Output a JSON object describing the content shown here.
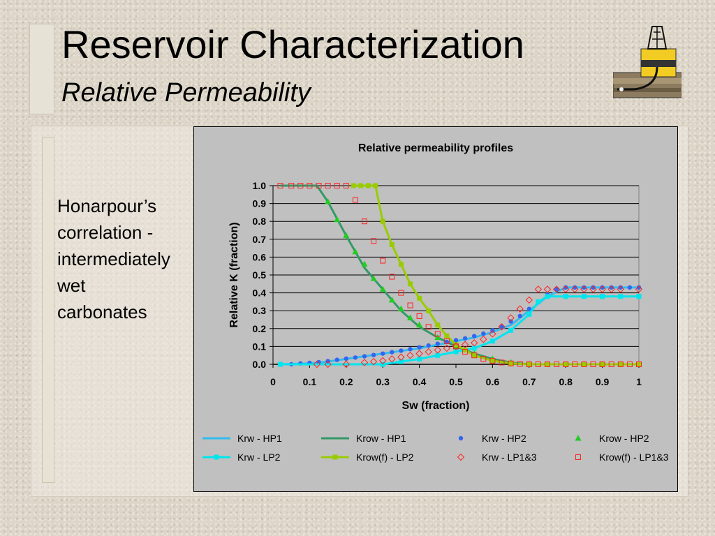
{
  "slide": {
    "title": "Reservoir Characterization",
    "subtitle": "Relative Permeability",
    "body_lines": [
      "Honarpour’s",
      "correlation -",
      "intermediately",
      "wet",
      "carbonates"
    ]
  },
  "colors": {
    "krw_hp1": "#33bbee",
    "krow_hp1": "#339966",
    "krw_hp2": "#3366ee",
    "krow_hp2": "#22cc22",
    "krw_lp2": "#00e5ee",
    "krowf_lp2": "#99cc00",
    "krw_lp13": "#ff2222",
    "krowf_lp13": "#ff2222",
    "plot_bg": "#c0c0c0"
  },
  "chart_data": {
    "type": "scatter",
    "title": "Relative permeability profiles",
    "xlabel": "Sw (fraction)",
    "ylabel": "Relative K (fraction)",
    "xlim": [
      0,
      1
    ],
    "ylim": [
      0,
      1
    ],
    "x_ticks": [
      "0",
      "0.1",
      "0.2",
      "0.3",
      "0.4",
      "0.5",
      "0.6",
      "0.7",
      "0.8",
      "0.9",
      "1"
    ],
    "y_ticks": [
      "0.0",
      "0.1",
      "0.2",
      "0.3",
      "0.4",
      "0.5",
      "0.6",
      "0.7",
      "0.8",
      "0.9",
      "1.0"
    ],
    "grid": "horizontal",
    "legend_position": "bottom",
    "series": [
      {
        "name": "Krw - HP1",
        "style": "line",
        "color": "#33bbee",
        "marker": "none",
        "x": [
          0.02,
          0.1,
          0.15,
          0.2,
          0.25,
          0.3,
          0.35,
          0.4,
          0.45,
          0.5,
          0.55,
          0.6,
          0.65,
          0.7,
          0.75,
          0.8,
          0.85,
          0.9,
          1.0
        ],
        "y": [
          0,
          0.005,
          0.015,
          0.03,
          0.045,
          0.06,
          0.075,
          0.09,
          0.11,
          0.13,
          0.15,
          0.18,
          0.22,
          0.3,
          0.38,
          0.43,
          0.43,
          0.43,
          0.43
        ]
      },
      {
        "name": "Krow - HP1",
        "style": "line",
        "color": "#339966",
        "marker": "none",
        "x": [
          0.02,
          0.12,
          0.15,
          0.2,
          0.25,
          0.3,
          0.35,
          0.4,
          0.45,
          0.5,
          0.55,
          0.6,
          0.65,
          0.7,
          0.75,
          0.8,
          1.0
        ],
        "y": [
          1.0,
          1.0,
          0.91,
          0.72,
          0.54,
          0.42,
          0.3,
          0.21,
          0.15,
          0.1,
          0.06,
          0.03,
          0.01,
          0.0,
          0.0,
          0.0,
          0.0
        ]
      },
      {
        "name": "Krw - HP2",
        "style": "marker",
        "color": "#3366ee",
        "marker": "circle",
        "x": [
          0.02,
          0.05,
          0.075,
          0.1,
          0.125,
          0.15,
          0.175,
          0.2,
          0.225,
          0.25,
          0.275,
          0.3,
          0.325,
          0.35,
          0.375,
          0.4,
          0.425,
          0.45,
          0.475,
          0.5,
          0.525,
          0.55,
          0.575,
          0.6,
          0.625,
          0.65,
          0.675,
          0.7,
          0.725,
          0.75,
          0.775,
          0.8,
          0.825,
          0.85,
          0.875,
          0.9,
          0.925,
          0.95,
          0.975,
          1.0
        ],
        "y": [
          0,
          0,
          0.005,
          0.008,
          0.012,
          0.018,
          0.025,
          0.032,
          0.038,
          0.045,
          0.052,
          0.06,
          0.068,
          0.076,
          0.085,
          0.095,
          0.105,
          0.115,
          0.125,
          0.135,
          0.145,
          0.158,
          0.172,
          0.19,
          0.21,
          0.24,
          0.27,
          0.31,
          0.35,
          0.39,
          0.42,
          0.43,
          0.43,
          0.43,
          0.43,
          0.43,
          0.43,
          0.43,
          0.43,
          0.43
        ]
      },
      {
        "name": "Krow - HP2",
        "style": "marker",
        "color": "#22cc22",
        "marker": "triangle",
        "x": [
          0.15,
          0.175,
          0.2,
          0.225,
          0.25,
          0.275,
          0.3,
          0.325,
          0.35,
          0.375,
          0.4,
          0.45,
          0.5,
          0.55,
          0.6,
          0.65,
          0.7
        ],
        "y": [
          0.91,
          0.81,
          0.72,
          0.63,
          0.56,
          0.48,
          0.42,
          0.36,
          0.31,
          0.26,
          0.22,
          0.15,
          0.1,
          0.06,
          0.03,
          0.01,
          0.0
        ]
      },
      {
        "name": "Krw - LP2",
        "style": "line+marker",
        "color": "#00e5ee",
        "marker": "square",
        "x": [
          0.02,
          0.3,
          0.35,
          0.4,
          0.45,
          0.5,
          0.55,
          0.6,
          0.65,
          0.7,
          0.725,
          0.75,
          0.8,
          0.85,
          0.9,
          0.95,
          1.0
        ],
        "y": [
          0,
          0.0,
          0.015,
          0.03,
          0.05,
          0.07,
          0.09,
          0.13,
          0.19,
          0.28,
          0.35,
          0.38,
          0.38,
          0.38,
          0.38,
          0.38,
          0.38
        ]
      },
      {
        "name": "Krow(f) - LP2",
        "style": "line+marker",
        "color": "#99cc00",
        "marker": "square",
        "x": [
          0.22,
          0.24,
          0.26,
          0.28,
          0.3,
          0.325,
          0.35,
          0.375,
          0.4,
          0.425,
          0.45,
          0.475,
          0.5,
          0.525,
          0.55,
          0.6,
          0.65,
          0.7,
          0.75,
          0.8,
          0.85,
          0.9,
          0.95,
          1.0
        ],
        "y": [
          1.0,
          1.0,
          1.0,
          1.0,
          0.8,
          0.67,
          0.56,
          0.45,
          0.37,
          0.3,
          0.22,
          0.16,
          0.11,
          0.08,
          0.05,
          0.02,
          0.005,
          0,
          0,
          0,
          0,
          0,
          0,
          0
        ]
      },
      {
        "name": "Krw - LP1&3",
        "style": "marker",
        "color": "#ff2222",
        "marker": "diamond-open",
        "x": [
          0.12,
          0.15,
          0.2,
          0.25,
          0.275,
          0.3,
          0.325,
          0.35,
          0.375,
          0.4,
          0.425,
          0.45,
          0.475,
          0.5,
          0.525,
          0.55,
          0.575,
          0.6,
          0.625,
          0.65,
          0.675,
          0.7,
          0.725,
          0.75,
          0.775,
          0.8,
          0.825,
          0.85,
          0.875,
          0.9,
          0.925,
          0.95,
          1.0
        ],
        "y": [
          0,
          0,
          0,
          0.01,
          0.015,
          0.02,
          0.03,
          0.04,
          0.05,
          0.06,
          0.07,
          0.08,
          0.09,
          0.1,
          0.11,
          0.12,
          0.14,
          0.17,
          0.21,
          0.26,
          0.31,
          0.36,
          0.42,
          0.42,
          0.42,
          0.42,
          0.42,
          0.42,
          0.42,
          0.42,
          0.42,
          0.42,
          0.42
        ]
      },
      {
        "name": "Krow(f) - LP1&3",
        "style": "marker",
        "color": "#ff2222",
        "marker": "square-open",
        "x": [
          0.02,
          0.05,
          0.075,
          0.1,
          0.125,
          0.15,
          0.175,
          0.2,
          0.225,
          0.25,
          0.275,
          0.3,
          0.325,
          0.35,
          0.375,
          0.4,
          0.425,
          0.45,
          0.475,
          0.5,
          0.525,
          0.55,
          0.575,
          0.6,
          0.625,
          0.65,
          0.675,
          0.7,
          0.725,
          0.75,
          0.775,
          0.8,
          0.825,
          0.85,
          0.875,
          0.9,
          0.925,
          0.95,
          0.975,
          1.0
        ],
        "y": [
          1.0,
          1.0,
          1.0,
          1.0,
          1.0,
          1.0,
          1.0,
          1.0,
          0.92,
          0.8,
          0.69,
          0.58,
          0.49,
          0.4,
          0.33,
          0.27,
          0.21,
          0.17,
          0.13,
          0.1,
          0.07,
          0.05,
          0.03,
          0.02,
          0.01,
          0.005,
          0.002,
          0,
          0,
          0,
          0,
          0,
          0,
          0,
          0,
          0,
          0,
          0,
          0,
          0
        ]
      }
    ]
  }
}
